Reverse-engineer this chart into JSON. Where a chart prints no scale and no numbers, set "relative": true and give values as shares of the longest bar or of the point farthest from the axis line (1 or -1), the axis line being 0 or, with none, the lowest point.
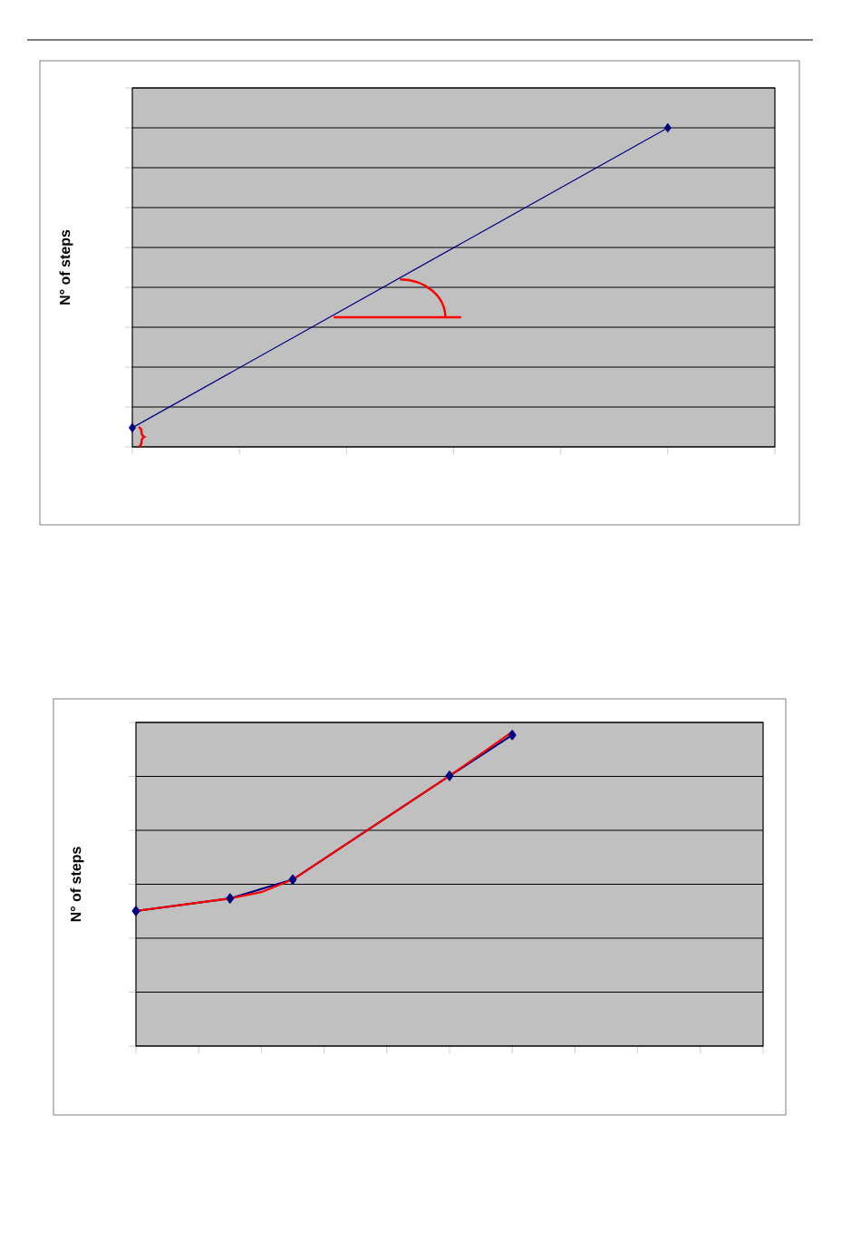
{
  "chart_data": [
    {
      "type": "line",
      "ylabel": "N° of steps",
      "relative": true,
      "grid": "y",
      "categories": [
        null,
        null,
        null,
        null,
        null,
        null,
        null
      ],
      "series": [
        {
          "color": "#000080",
          "marker": "diamond",
          "values": [
            0.06,
            null,
            null,
            null,
            null,
            1,
            null
          ]
        }
      ]
    },
    {
      "type": "line",
      "ylabel": "N° of steps",
      "relative": true,
      "grid": "y",
      "categories": [
        null,
        null,
        null,
        null,
        null,
        null,
        null,
        null,
        null,
        null,
        null,
        null,
        null,
        null,
        null,
        null,
        null,
        null,
        null,
        null,
        null
      ],
      "series": [
        {
          "color": "#000080",
          "marker": "diamond",
          "values": [
            0.43,
            null,
            null,
            0.47,
            null,
            0.53,
            null,
            null,
            null,
            null,
            0.86,
            null,
            0.99,
            null,
            null,
            null,
            null,
            null,
            null,
            null,
            null
          ]
        },
        {
          "color": "#ff0000",
          "marker": "none",
          "values": [
            0.43,
            null,
            null,
            0.47,
            0.49,
            0.53,
            null,
            null,
            null,
            null,
            0.86,
            null,
            1,
            null,
            null,
            null,
            null,
            null,
            null,
            null,
            null
          ]
        }
      ]
    }
  ]
}
